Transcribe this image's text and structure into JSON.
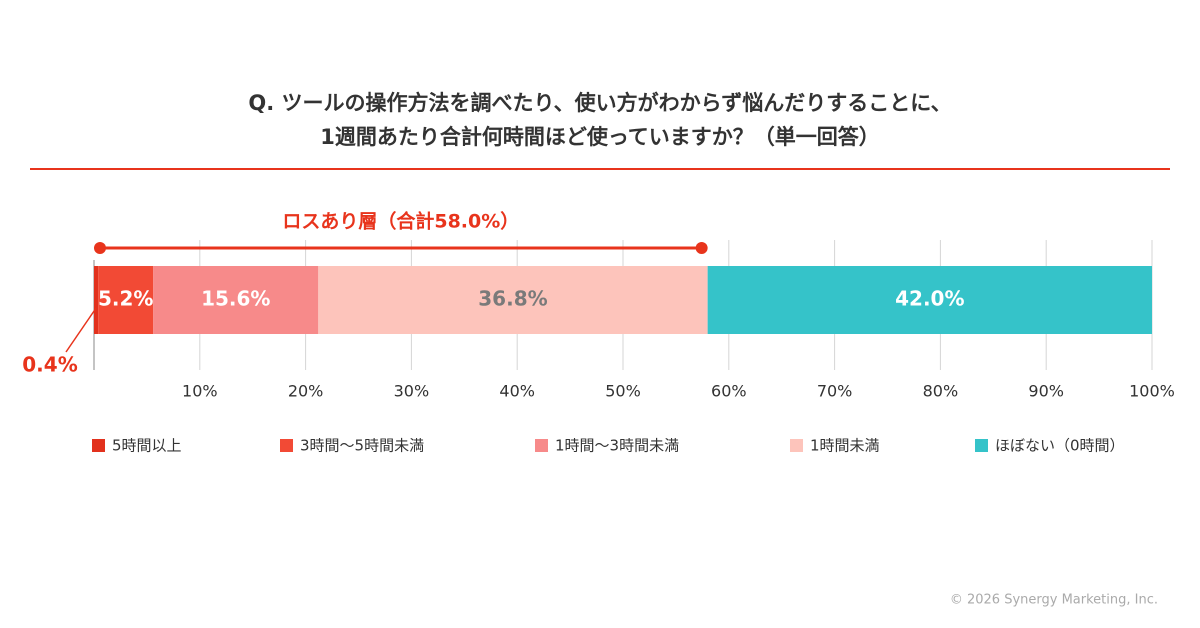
{
  "chart_data": {
    "type": "stacked-bar-horizontal",
    "title": [
      "Q. ツールの操作方法を調べたり、使い方がわからず悩んだりすることに、",
      "1週間あたり合計何時間ほど使っていますか？（単一回答）"
    ],
    "annotation": {
      "text": "ロスあり層（合計58.0%）",
      "range": [
        0,
        58
      ]
    },
    "series": [
      {
        "name": "5時間以上",
        "color": "#e2311d",
        "label_color": "#e8341c",
        "values": [
          0.4
        ],
        "value_labels": [
          "0.4%"
        ]
      },
      {
        "name": "3時間〜5時間未満",
        "color": "#f24a35",
        "label_color": "#ffffff",
        "values": [
          5.2
        ],
        "value_labels": [
          "5.2%"
        ]
      },
      {
        "name": "1時間〜3時間未満",
        "color": "#f78a8a",
        "label_color": "#ffffff",
        "values": [
          15.6
        ],
        "value_labels": [
          "15.6%"
        ]
      },
      {
        "name": "1時間未満",
        "color": "#fdc4bb",
        "label_color": "#7a7a7a",
        "values": [
          36.8
        ],
        "value_labels": [
          "36.8%"
        ]
      },
      {
        "name": "ほぼない（0時間）",
        "color": "#35c3c9",
        "label_color": "#ffffff",
        "values": [
          42
        ],
        "value_labels": [
          "42.0%"
        ]
      }
    ],
    "xlim": [
      0,
      100
    ],
    "xticks": [
      {
        "value": 10,
        "label": "10%"
      },
      {
        "value": 20,
        "label": "20%"
      },
      {
        "value": 30,
        "label": "30%"
      },
      {
        "value": 40,
        "label": "40%"
      },
      {
        "value": 50,
        "label": "50%"
      },
      {
        "value": 60,
        "label": "60%"
      },
      {
        "value": 70,
        "label": "70%"
      },
      {
        "value": 80,
        "label": "80%"
      },
      {
        "value": 90,
        "label": "90%"
      },
      {
        "value": 100,
        "label": "100%"
      }
    ],
    "grid": true,
    "footer": "© 2026 Synergy Marketing, Inc."
  }
}
